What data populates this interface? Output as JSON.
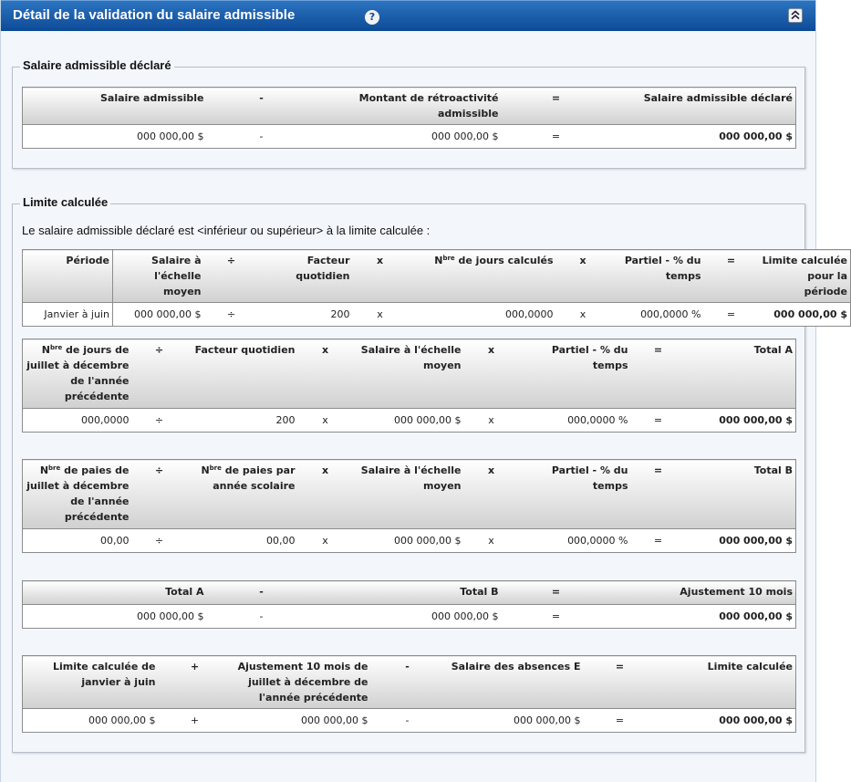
{
  "header": {
    "title": "Détail de la validation du salaire admissible",
    "help": "?"
  },
  "sections": [
    {
      "legend": "Salaire admissible déclaré",
      "tables": [
        {
          "headers": [
            "Salaire admissible",
            "-",
            "Montant de rétroactivité admissible",
            "=",
            "Salaire admissible déclaré"
          ],
          "row": [
            "000 000,00 $",
            "-",
            "000 000,00 $",
            "=",
            "000 000,00 $"
          ]
        }
      ]
    },
    {
      "legend": "Limite calculée",
      "intro": "Le salaire admissible déclaré est <inférieur ou supérieur> à la limite calculée :",
      "tables": [
        {
          "headers": [
            "Période",
            "Salaire à l'échelle moyen",
            "÷",
            "Facteur quotidien",
            "x",
            {
              "text": "N",
              "sup": "bre",
              "after": " de jours calculés"
            },
            "x",
            "Partiel - % du temps",
            "=",
            "Limite calculée pour la période"
          ],
          "row": [
            "Janvier à juin",
            "000 000,00 $",
            "÷",
            "200",
            "x",
            "000,0000",
            "x",
            "000,0000 %",
            "=",
            "000 000,00 $"
          ]
        },
        {
          "headers": [
            {
              "text": "N",
              "sup": "bre",
              "after": " de jours de juillet à décembre de l'année précédente"
            },
            "÷",
            "Facteur quotidien",
            "x",
            "Salaire à l'échelle moyen",
            "x",
            "Partiel - % du temps",
            "=",
            "Total A"
          ],
          "row": [
            "000,0000",
            "÷",
            "200",
            "x",
            "000 000,00 $",
            "x",
            "000,0000 %",
            "=",
            "000 000,00 $"
          ]
        },
        {
          "headers": [
            {
              "text": "N",
              "sup": "bre",
              "after": " de paies de juillet à décembre de l'année précédente"
            },
            "÷",
            {
              "text": "N",
              "sup": "bre",
              "after": " de paies par année scolaire"
            },
            "x",
            "Salaire à l'échelle moyen",
            "x",
            "Partiel - % du temps",
            "=",
            "Total B"
          ],
          "row": [
            "00,00",
            "÷",
            "00,00",
            "x",
            "000 000,00 $",
            "x",
            "000,0000 %",
            "=",
            "000 000,00 $"
          ]
        },
        {
          "headers": [
            "Total A",
            "-",
            "Total B",
            "=",
            "Ajustement 10 mois"
          ],
          "row": [
            "000 000,00 $",
            "-",
            "000 000,00 $",
            "=",
            "000 000,00 $"
          ]
        },
        {
          "headers": [
            "Limite calculée de janvier à juin",
            "+",
            "Ajustement 10 mois de juillet à décembre de l'année précédente",
            "-",
            "Salaire des absences E",
            "=",
            "Limite calculée"
          ],
          "row": [
            "000 000,00 $",
            "+",
            "000 000,00 $",
            "-",
            "000 000,00 $",
            "=",
            "000 000,00 $"
          ]
        }
      ]
    }
  ]
}
